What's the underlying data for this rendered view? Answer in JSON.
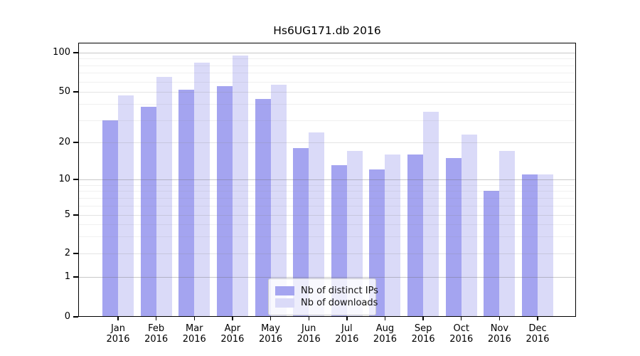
{
  "chart_data": {
    "type": "bar",
    "title": "Hs6UG171.db 2016",
    "categories": [
      "Jan 2016",
      "Feb 2016",
      "Mar 2016",
      "Apr 2016",
      "May 2016",
      "Jun 2016",
      "Jul 2016",
      "Aug 2016",
      "Sep 2016",
      "Oct 2016",
      "Nov 2016",
      "Dec 2016"
    ],
    "series": [
      {
        "name": "Nb of distinct IPs",
        "color": "#a4a4f0",
        "values": [
          30,
          38,
          52,
          55,
          44,
          18,
          13,
          12,
          16,
          15,
          8,
          11
        ]
      },
      {
        "name": "Nb of downloads",
        "color": "#dadaf8",
        "values": [
          47,
          65,
          84,
          95,
          57,
          24,
          17,
          16,
          35,
          23,
          17,
          11
        ]
      }
    ],
    "yticks": [
      0,
      1,
      2,
      5,
      10,
      20,
      50,
      100
    ],
    "yticks_minor": [
      3,
      4,
      6,
      7,
      8,
      9,
      30,
      40,
      60,
      70,
      80,
      90
    ],
    "yscale": "log-like (0,1,2,5,10,20,50,100)",
    "ylim": [
      0,
      110
    ],
    "xlabel": "",
    "ylabel": "",
    "grid": true,
    "legend_position": "lower center"
  }
}
